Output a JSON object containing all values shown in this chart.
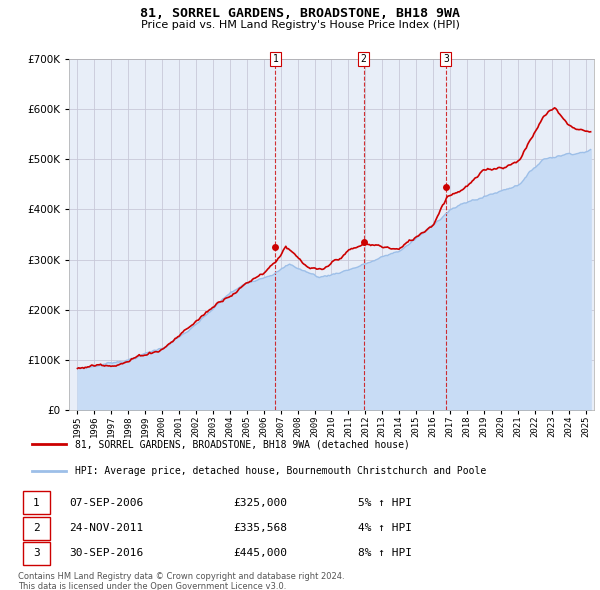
{
  "title": "81, SORREL GARDENS, BROADSTONE, BH18 9WA",
  "subtitle": "Price paid vs. HM Land Registry's House Price Index (HPI)",
  "legend_line1": "81, SORREL GARDENS, BROADSTONE, BH18 9WA (detached house)",
  "legend_line2": "HPI: Average price, detached house, Bournemouth Christchurch and Poole",
  "footer1": "Contains HM Land Registry data © Crown copyright and database right 2024.",
  "footer2": "This data is licensed under the Open Government Licence v3.0.",
  "transactions": [
    {
      "num": 1,
      "date": "07-SEP-2006",
      "price": "£325,000",
      "pct": "5% ↑ HPI",
      "year": 2006.69
    },
    {
      "num": 2,
      "date": "24-NOV-2011",
      "price": "£335,568",
      "pct": "4% ↑ HPI",
      "year": 2011.9
    },
    {
      "num": 3,
      "date": "30-SEP-2016",
      "price": "£445,000",
      "pct": "8% ↑ HPI",
      "year": 2016.75
    }
  ],
  "transaction_values": [
    325000,
    335568,
    445000
  ],
  "hpi_color": "#9dbfe8",
  "hpi_fill_color": "#c8dcf5",
  "price_color": "#cc0000",
  "marker_color": "#cc0000",
  "vline_color": "#cc0000",
  "background_color": "#ffffff",
  "plot_bg_color": "#e8eef8",
  "grid_color": "#c8c8d8",
  "ylim": [
    0,
    700000
  ],
  "yticks": [
    0,
    100000,
    200000,
    300000,
    400000,
    500000,
    600000,
    700000
  ],
  "xlim_start": 1994.5,
  "xlim_end": 2025.5,
  "xtick_years": [
    1995,
    1996,
    1997,
    1998,
    1999,
    2000,
    2001,
    2002,
    2003,
    2004,
    2005,
    2006,
    2007,
    2008,
    2009,
    2010,
    2011,
    2012,
    2013,
    2014,
    2015,
    2016,
    2017,
    2018,
    2019,
    2020,
    2021,
    2022,
    2023,
    2024,
    2025
  ]
}
